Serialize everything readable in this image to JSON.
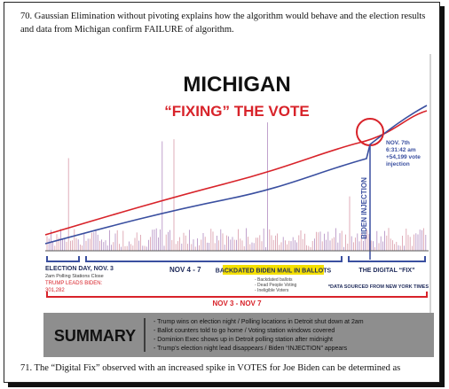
{
  "paragraphs": [
    "70. Gaussian Elimination without pivoting explains how the algorithm would behave and the election results and data from Michigan confirm FAILURE of algorithm.",
    "71. The “Digital Fix” observed with an increased spike in VOTES for Joe Biden can be determined as"
  ],
  "graphic": {
    "title": "MICHIGAN",
    "subtitle": "“FIXING” THE VOTE",
    "injection_label": "BIDEN INJECTION",
    "injection_note": [
      "NOV. 7th",
      "6:31:42 am",
      "+54,199 vote",
      "injection"
    ],
    "election_day": {
      "title": "ELECTION DAY, NOV. 3",
      "note": "2am Polling Stations Close",
      "lead": [
        "TRUMP LEADS BIDEN:",
        "301,282"
      ]
    },
    "period": "NOV 4 - 7",
    "backdated": "BACKDATED BIDEN MAIL IN BALLOTS",
    "backdated_items": [
      "- Backdated ballots",
      "- Dead People Voting",
      "- Ineligible Voters"
    ],
    "digital_fix": "THE DIGITAL “FIX”",
    "source": "*DATA SOURCED FROM NEW YORK TIMES",
    "range": "NOV 3 - NOV 7",
    "summary": {
      "title": "SUMMARY",
      "items": [
        "- Trump wins on election night / Polling locations in Detroit shut down at 2am",
        "- Ballot counters told to go home / Voting station windows covered",
        "- Dominion Exec shows up in Detroit polling station after midnight",
        "- Trump’s election night lead disappears / Biden “INJECTION” appears"
      ]
    }
  }
}
